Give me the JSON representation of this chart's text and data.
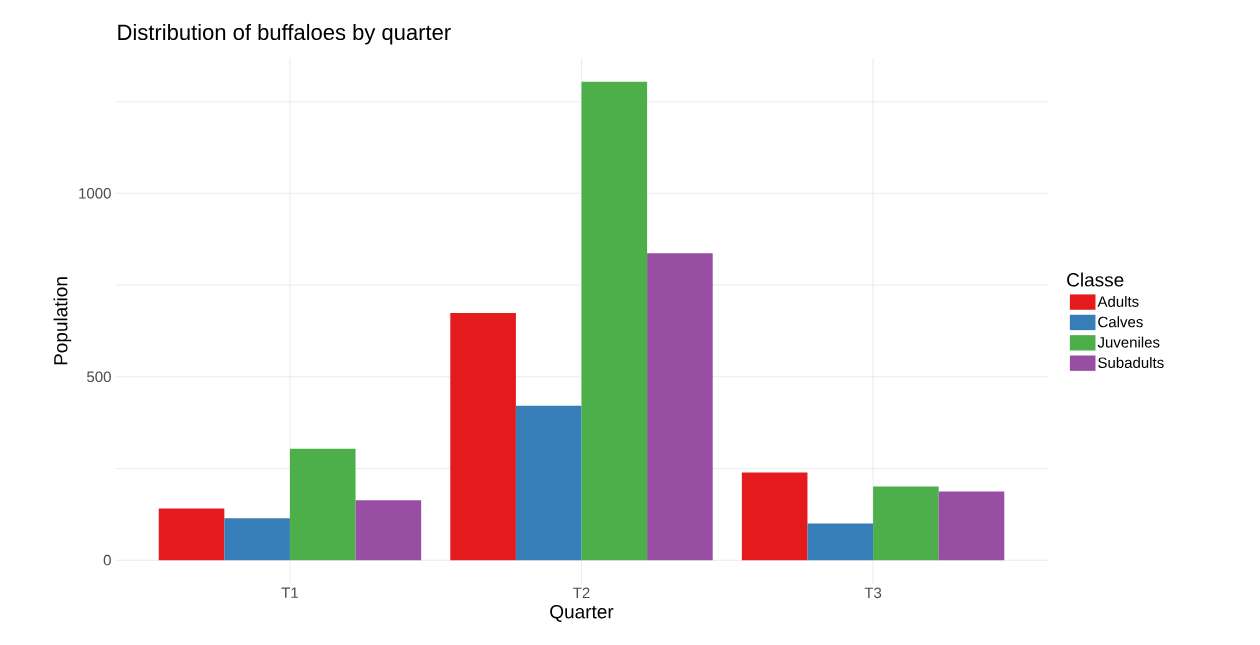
{
  "chart_data": {
    "type": "bar",
    "title": "Distribution of buffaloes by quarter",
    "xlabel": "Quarter",
    "ylabel": "Population",
    "legend_title": "Classe",
    "categories": [
      "T1",
      "T2",
      "T3"
    ],
    "series": [
      {
        "name": "Adults",
        "color": "#e41a1c",
        "values": [
          141,
          674,
          239
        ]
      },
      {
        "name": "Calves",
        "color": "#377eb8",
        "values": [
          114,
          421,
          100
        ]
      },
      {
        "name": "Juveniles",
        "color": "#4daf4a",
        "values": [
          304,
          1304,
          201
        ]
      },
      {
        "name": "Subadults",
        "color": "#984ea3",
        "values": [
          163,
          837,
          187
        ]
      }
    ],
    "ylim": [
      -65,
      1369
    ],
    "yticks": [
      0,
      {
        "value": 250,
        "label": null
      },
      500,
      {
        "value": 750,
        "label": null
      },
      1000,
      {
        "value": 1250,
        "label": null
      }
    ],
    "grid": true,
    "legend": "right"
  }
}
